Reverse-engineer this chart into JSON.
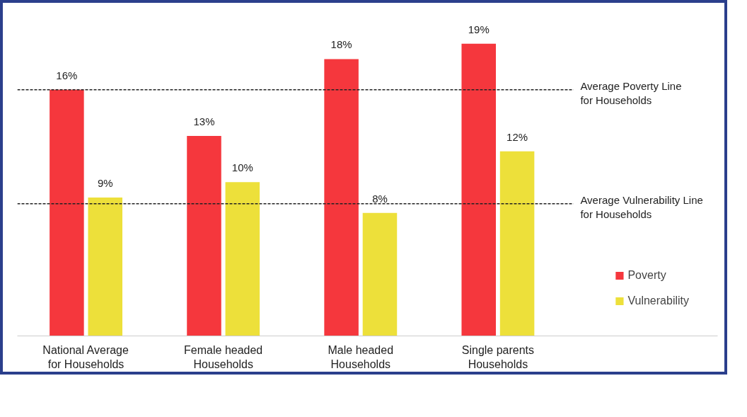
{
  "chart_data": {
    "type": "bar",
    "categories": [
      "National Average for Households",
      "Female headed Households",
      "Male headed Households",
      "Single parents Households"
    ],
    "series": [
      {
        "name": "Poverty",
        "color": "#f5373d",
        "values": [
          16,
          13,
          18,
          19
        ],
        "value_labels": [
          "16%",
          "13%",
          "18%",
          "19%"
        ]
      },
      {
        "name": "Vulnerability",
        "color": "#ede03a",
        "values": [
          9,
          10,
          8,
          12
        ],
        "value_labels": [
          "9%",
          "10%",
          "8%",
          "12%"
        ]
      }
    ],
    "tick_labels": "x",
    "grid": false,
    "legend": "right",
    "ref_lines": [
      {
        "axis": "y",
        "value": 16,
        "label": "Average Poverty Line for Households",
        "color": "#222222",
        "line_style": "dashed"
      },
      {
        "axis": "y",
        "value": 8.6,
        "label": "Average Vulnerability Line for Households",
        "color": "#222222",
        "line_style": "dashed"
      }
    ]
  }
}
